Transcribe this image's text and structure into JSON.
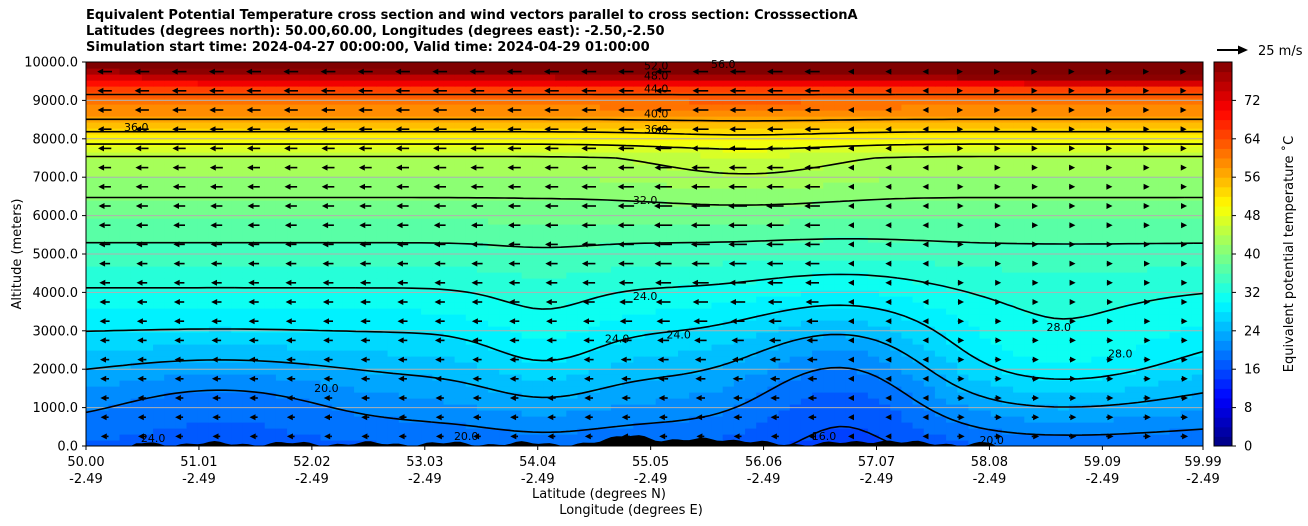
{
  "title_lines": [
    "Equivalent Potential Temperature cross section and wind vectors parallel to cross section: CrosssectionA",
    "Latitudes (degrees north): 50.00,60.00, Longitudes (degrees east): -2.50,-2.50",
    "Simulation start time: 2024-04-27 00:00:00, Valid time: 2024-04-29 01:00:00"
  ],
  "chart_data": {
    "type": "heatmap",
    "ylabel": "Altitude (meters)",
    "xlabel_line1": "Latitude (degrees N)",
    "xlabel_line2": "Longitude (degrees E)",
    "ylim": [
      0,
      10000
    ],
    "xlim": [
      50.0,
      59.99
    ],
    "y_ticks": [
      "0.0",
      "1000.0",
      "2000.0",
      "3000.0",
      "4000.0",
      "5000.0",
      "6000.0",
      "7000.0",
      "8000.0",
      "9000.0",
      "10000.0"
    ],
    "x_ticks": [
      {
        "lat": "50.00",
        "lon": "-2.49"
      },
      {
        "lat": "51.01",
        "lon": "-2.49"
      },
      {
        "lat": "52.02",
        "lon": "-2.49"
      },
      {
        "lat": "53.03",
        "lon": "-2.49"
      },
      {
        "lat": "54.04",
        "lon": "-2.49"
      },
      {
        "lat": "55.05",
        "lon": "-2.49"
      },
      {
        "lat": "56.06",
        "lon": "-2.49"
      },
      {
        "lat": "57.07",
        "lon": "-2.49"
      },
      {
        "lat": "58.08",
        "lon": "-2.49"
      },
      {
        "lat": "59.09",
        "lon": "-2.49"
      },
      {
        "lat": "59.99",
        "lon": "-2.49"
      }
    ],
    "grid": "horizontal",
    "colorbar": {
      "label": "Equivalent potential temperature ˚C",
      "min": 0,
      "max": 80,
      "ticks": [
        "0",
        "8",
        "16",
        "24",
        "32",
        "40",
        "48",
        "56",
        "64",
        "72"
      ],
      "colormap": "jet"
    },
    "quiver_key_label": "25 m/s",
    "contour_levels": [
      "16.0",
      "20.0",
      "24.0",
      "28.0",
      "32.0",
      "36.0",
      "40.0",
      "44.0",
      "48.0",
      "52.0",
      "56.0",
      "64.0"
    ],
    "contour_labels": [
      {
        "text": "36.0",
        "lat": 50.45,
        "alt": 8200
      },
      {
        "text": "36.0",
        "lat": 55.1,
        "alt": 8150
      },
      {
        "text": "40.0",
        "lat": 55.1,
        "alt": 8550
      },
      {
        "text": "44.0",
        "lat": 55.1,
        "alt": 9200
      },
      {
        "text": "48.0",
        "lat": 55.1,
        "alt": 9550
      },
      {
        "text": "52.0",
        "lat": 55.1,
        "alt": 9800
      },
      {
        "text": "56.0",
        "lat": 55.7,
        "alt": 9850
      },
      {
        "text": "32.0",
        "lat": 55.0,
        "alt": 6300
      },
      {
        "text": "24.0",
        "lat": 55.0,
        "alt": 3800
      },
      {
        "text": "24.0",
        "lat": 54.75,
        "alt": 2700
      },
      {
        "text": "24.0",
        "lat": 55.3,
        "alt": 2800
      },
      {
        "text": "20.0",
        "lat": 52.15,
        "alt": 1400
      },
      {
        "text": "28.0",
        "lat": 58.7,
        "alt": 3000
      },
      {
        "text": "28.0",
        "lat": 59.25,
        "alt": 2300
      },
      {
        "text": "16.0",
        "lat": 56.6,
        "alt": 150
      },
      {
        "text": "20.0",
        "lat": 58.1,
        "alt": 50
      },
      {
        "text": "24.0",
        "lat": 50.6,
        "alt": 100
      },
      {
        "text": "20.0",
        "lat": 53.4,
        "alt": 150
      }
    ],
    "colors": {
      "contour": "#000000",
      "arrow": "#000000",
      "terrain": "#000000",
      "grid": "#b0b0b0"
    }
  }
}
